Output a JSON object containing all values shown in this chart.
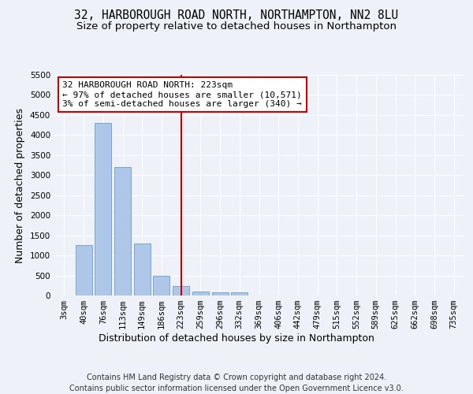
{
  "title_line1": "32, HARBOROUGH ROAD NORTH, NORTHAMPTON, NN2 8LU",
  "title_line2": "Size of property relative to detached houses in Northampton",
  "xlabel": "Distribution of detached houses by size in Northampton",
  "ylabel": "Number of detached properties",
  "footer_line1": "Contains HM Land Registry data © Crown copyright and database right 2024.",
  "footer_line2": "Contains public sector information licensed under the Open Government Licence v3.0.",
  "annotation_line1": "32 HARBOROUGH ROAD NORTH: 223sqm",
  "annotation_line2": "← 97% of detached houses are smaller (10,571)",
  "annotation_line3": "3% of semi-detached houses are larger (340) →",
  "bar_color": "#aec6e8",
  "bar_edge_color": "#5a8fc0",
  "vline_color": "#cc0000",
  "vline_x_index": 6,
  "categories": [
    "3sqm",
    "40sqm",
    "76sqm",
    "113sqm",
    "149sqm",
    "186sqm",
    "223sqm",
    "259sqm",
    "296sqm",
    "332sqm",
    "369sqm",
    "406sqm",
    "442sqm",
    "479sqm",
    "515sqm",
    "552sqm",
    "589sqm",
    "625sqm",
    "662sqm",
    "698sqm",
    "735sqm"
  ],
  "values": [
    0,
    1250,
    4300,
    3200,
    1300,
    500,
    230,
    100,
    70,
    70,
    0,
    0,
    0,
    0,
    0,
    0,
    0,
    0,
    0,
    0,
    0
  ],
  "ylim": [
    0,
    5500
  ],
  "yticks": [
    0,
    500,
    1000,
    1500,
    2000,
    2500,
    3000,
    3500,
    4000,
    4500,
    5000,
    5500
  ],
  "background_color": "#eef2f8",
  "plot_bg_color": "#eef2f8",
  "grid_color": "#ffffff",
  "annotation_box_facecolor": "#ffffff",
  "annotation_box_edgecolor": "#cc0000",
  "title_fontsize": 10.5,
  "subtitle_fontsize": 9.5,
  "axis_label_fontsize": 9,
  "tick_fontsize": 7.5,
  "annotation_fontsize": 8,
  "footer_fontsize": 7
}
